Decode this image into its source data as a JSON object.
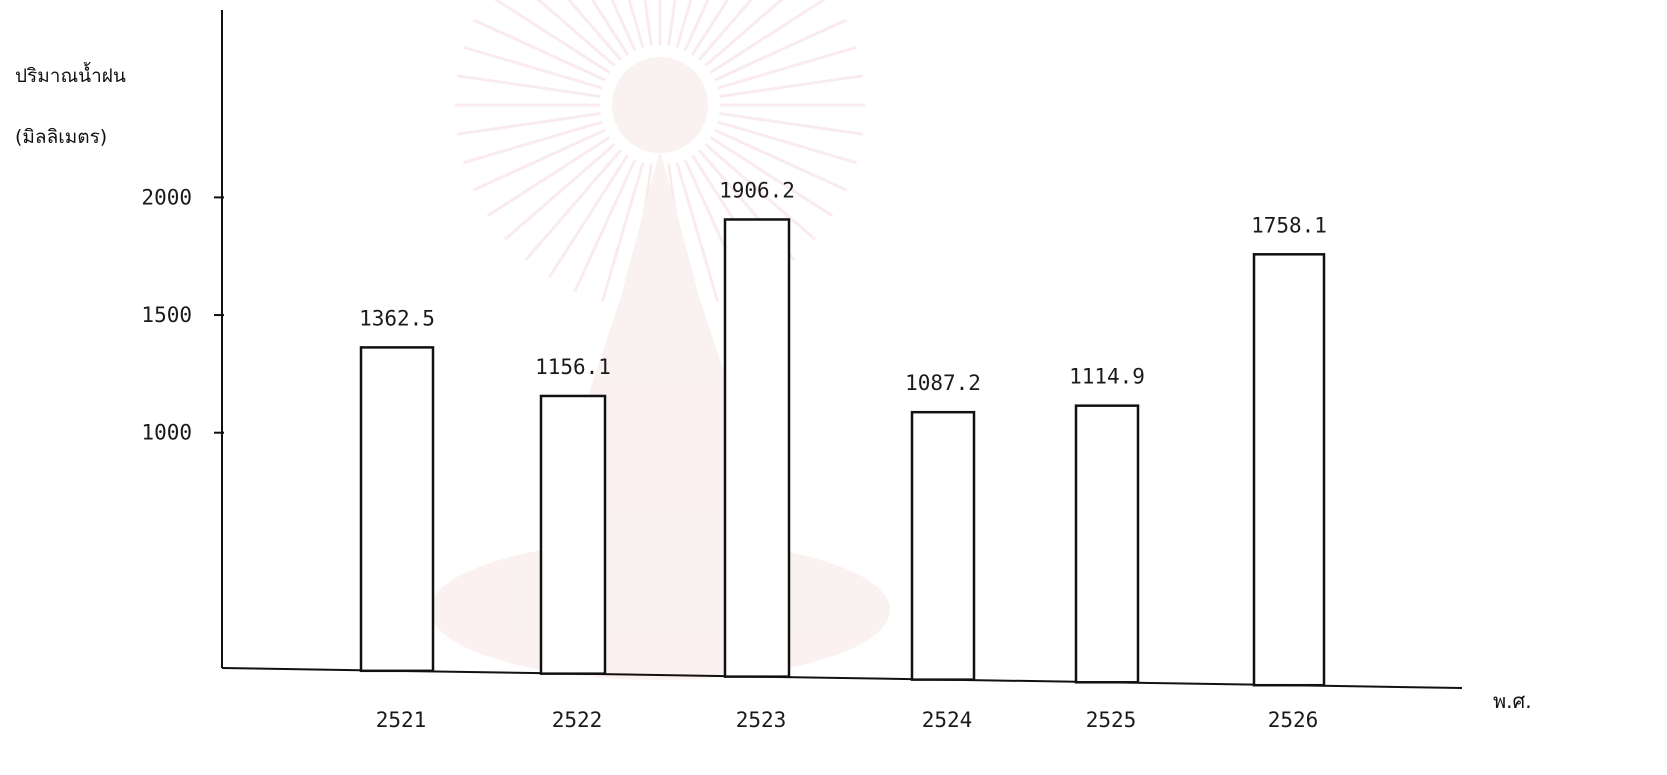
{
  "chart_data": {
    "type": "bar",
    "ylabel_lines": [
      "ปริมาณน้ำฝน",
      "(มิลลิเมตร)"
    ],
    "xlabel": "พ.ศ.",
    "categories": [
      "2521",
      "2522",
      "2523",
      "2524",
      "2525",
      "2526"
    ],
    "values": [
      1362.5,
      1156.1,
      1906.2,
      1087.2,
      1114.9,
      1758.1
    ],
    "value_labels": [
      "1362.5",
      "1156.1",
      "1906.2",
      "1087.2",
      "1114.9",
      "1758.1"
    ],
    "y_ticks": [
      1000,
      1500,
      2000
    ],
    "y_tick_labels": [
      "1000",
      "1500",
      "2000"
    ],
    "ylim": [
      0,
      2300
    ],
    "grid": false,
    "legend": "none",
    "colors": {
      "bar_fill": "#ffffff",
      "bar_stroke": "#111111",
      "watermark": "#f3d6d6"
    }
  }
}
